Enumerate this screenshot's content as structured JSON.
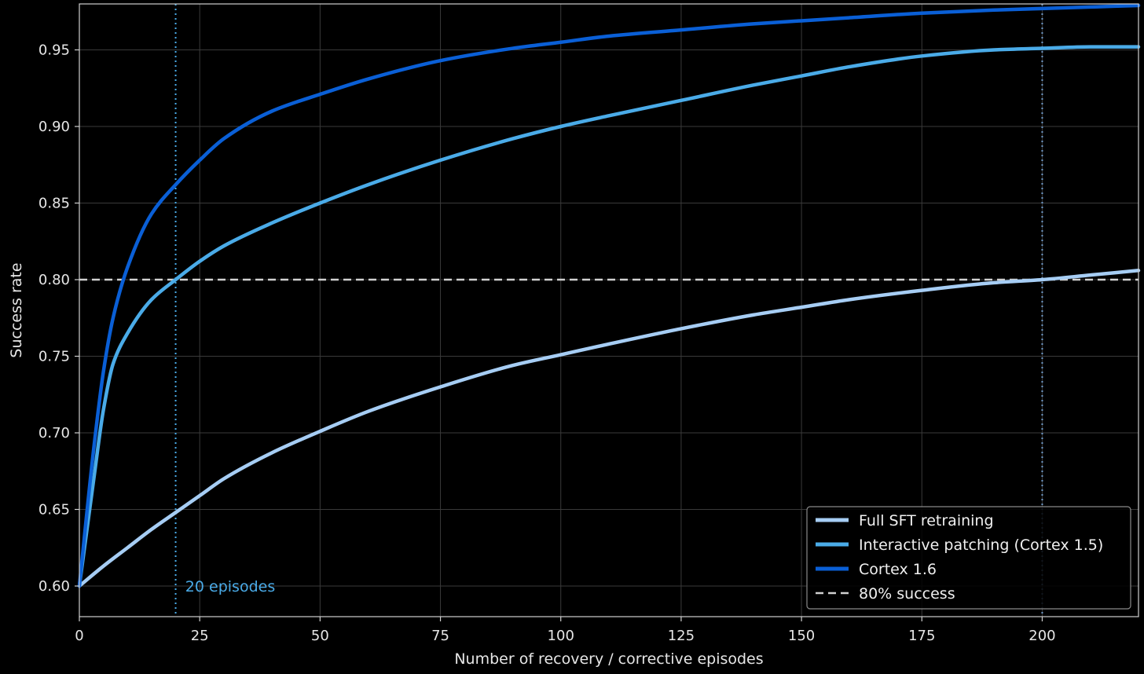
{
  "chart_data": {
    "type": "line",
    "title": "",
    "xlabel": "Number of recovery / corrective episodes",
    "ylabel": "Success rate",
    "xlim": [
      0,
      220
    ],
    "ylim": [
      0.58,
      0.98
    ],
    "xticks": [
      0,
      25,
      50,
      75,
      100,
      125,
      150,
      175,
      200
    ],
    "xtick_labels": [
      "0",
      "25",
      "50",
      "75",
      "100",
      "125",
      "150",
      "175",
      "200"
    ],
    "yticks": [
      0.6,
      0.65,
      0.7,
      0.75,
      0.8,
      0.85,
      0.9,
      0.95
    ],
    "ytick_labels": [
      "0.60",
      "0.65",
      "0.70",
      "0.75",
      "0.80",
      "0.85",
      "0.90",
      "0.95"
    ],
    "grid": true,
    "legend_position": "bottom-right",
    "series": [
      {
        "name": "Full SFT retraining",
        "color": "#a6cdf4",
        "x": [
          0,
          5,
          10,
          15,
          20,
          25,
          30,
          40,
          50,
          60,
          75,
          90,
          100,
          110,
          125,
          140,
          150,
          160,
          175,
          190,
          200,
          210,
          220
        ],
        "y": [
          0.6,
          0.613,
          0.625,
          0.637,
          0.648,
          0.659,
          0.67,
          0.687,
          0.701,
          0.714,
          0.73,
          0.744,
          0.751,
          0.758,
          0.768,
          0.777,
          0.782,
          0.787,
          0.793,
          0.798,
          0.8,
          0.803,
          0.806
        ]
      },
      {
        "name": "Interactive patching (Cortex 1.5)",
        "color": "#4aabe8",
        "x": [
          0,
          3,
          5,
          7,
          10,
          15,
          20,
          25,
          30,
          40,
          50,
          60,
          75,
          90,
          100,
          110,
          125,
          140,
          150,
          160,
          175,
          190,
          200,
          210,
          220
        ],
        "y": [
          0.6,
          0.67,
          0.715,
          0.745,
          0.765,
          0.787,
          0.8,
          0.812,
          0.822,
          0.837,
          0.85,
          0.862,
          0.878,
          0.892,
          0.9,
          0.907,
          0.917,
          0.927,
          0.933,
          0.939,
          0.946,
          0.95,
          0.951,
          0.952,
          0.952
        ]
      },
      {
        "name": "Cortex 1.6",
        "color": "#0a5fd6",
        "x": [
          0,
          3,
          5,
          7,
          10,
          15,
          20,
          25,
          30,
          40,
          50,
          60,
          75,
          90,
          100,
          110,
          125,
          140,
          150,
          160,
          175,
          190,
          200,
          210,
          220
        ],
        "y": [
          0.6,
          0.69,
          0.74,
          0.775,
          0.808,
          0.843,
          0.862,
          0.878,
          0.892,
          0.91,
          0.921,
          0.931,
          0.943,
          0.951,
          0.955,
          0.959,
          0.963,
          0.967,
          0.969,
          0.971,
          0.974,
          0.976,
          0.977,
          0.978,
          0.979
        ]
      }
    ],
    "hlines": [
      {
        "y": 0.8,
        "label": "80% success",
        "color": "#d0d0d0",
        "style": "dashed"
      }
    ],
    "vlines": [
      {
        "x": 20,
        "color": "#4aabe8",
        "style": "dotted"
      },
      {
        "x": 200,
        "color": "#6f98c6",
        "style": "dotted"
      }
    ],
    "annotations": [
      {
        "text": "20 episodes",
        "x": 22,
        "y": 0.6,
        "color": "#4aabe8"
      }
    ]
  }
}
